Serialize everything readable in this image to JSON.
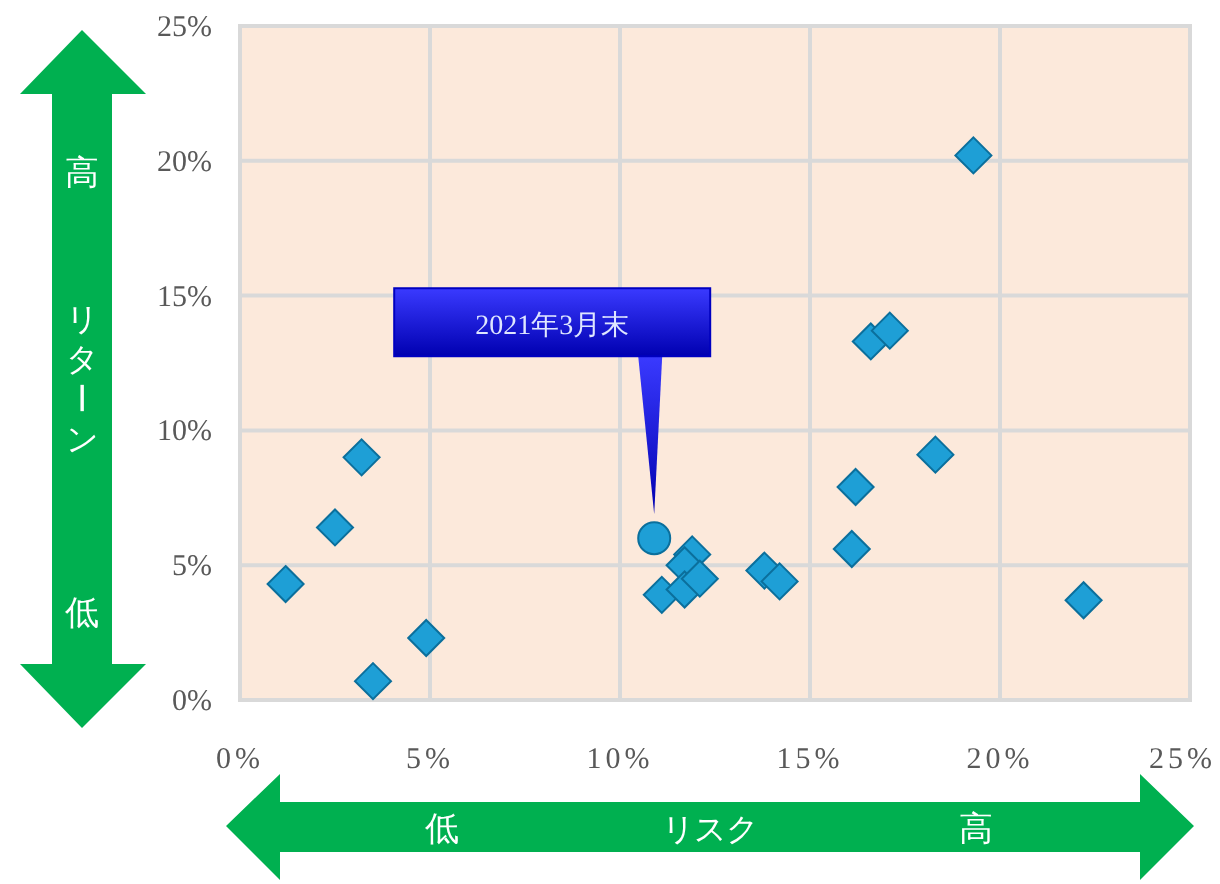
{
  "chart_data": {
    "type": "scatter",
    "xlabel": "リスク",
    "ylabel": "リターン",
    "annotations": [
      "高",
      "低",
      "低",
      "高",
      "2021年3月末"
    ],
    "xlim": [
      0,
      25
    ],
    "ylim": [
      0,
      25
    ],
    "xticks": [
      {
        "value": 0,
        "label": "0%"
      },
      {
        "value": 5,
        "label": "5%"
      },
      {
        "value": 10,
        "label": "10%"
      },
      {
        "value": 15,
        "label": "15%"
      },
      {
        "value": 20,
        "label": "20%"
      },
      {
        "value": 25,
        "label": "25%"
      }
    ],
    "yticks": [
      {
        "value": 0,
        "label": "0%"
      },
      {
        "value": 5,
        "label": "5%"
      },
      {
        "value": 10,
        "label": "10%"
      },
      {
        "value": 15,
        "label": "15%"
      },
      {
        "value": 20,
        "label": "20%"
      },
      {
        "value": 25,
        "label": "25%"
      }
    ],
    "grid": true,
    "series": [
      {
        "color": "#1e9fd6",
        "marker": "diamond",
        "x": [
          1.2,
          2.5,
          3.2,
          3.5,
          4.9,
          11.1,
          11.9,
          11.7,
          11.7,
          12.1,
          13.8,
          14.2,
          16.1,
          16.2,
          18.3,
          16.6,
          17.1,
          19.3,
          22.2
        ],
        "values": [
          4.3,
          6.4,
          9.0,
          0.7,
          2.3,
          3.9,
          5.4,
          5.0,
          4.1,
          4.5,
          4.8,
          4.4,
          5.6,
          7.9,
          9.1,
          13.3,
          13.7,
          20.2,
          3.7
        ]
      },
      {
        "color": "#1e9fd6",
        "marker": "circle",
        "x": [
          10.9
        ],
        "values": [
          6.0
        ]
      }
    ]
  }
}
